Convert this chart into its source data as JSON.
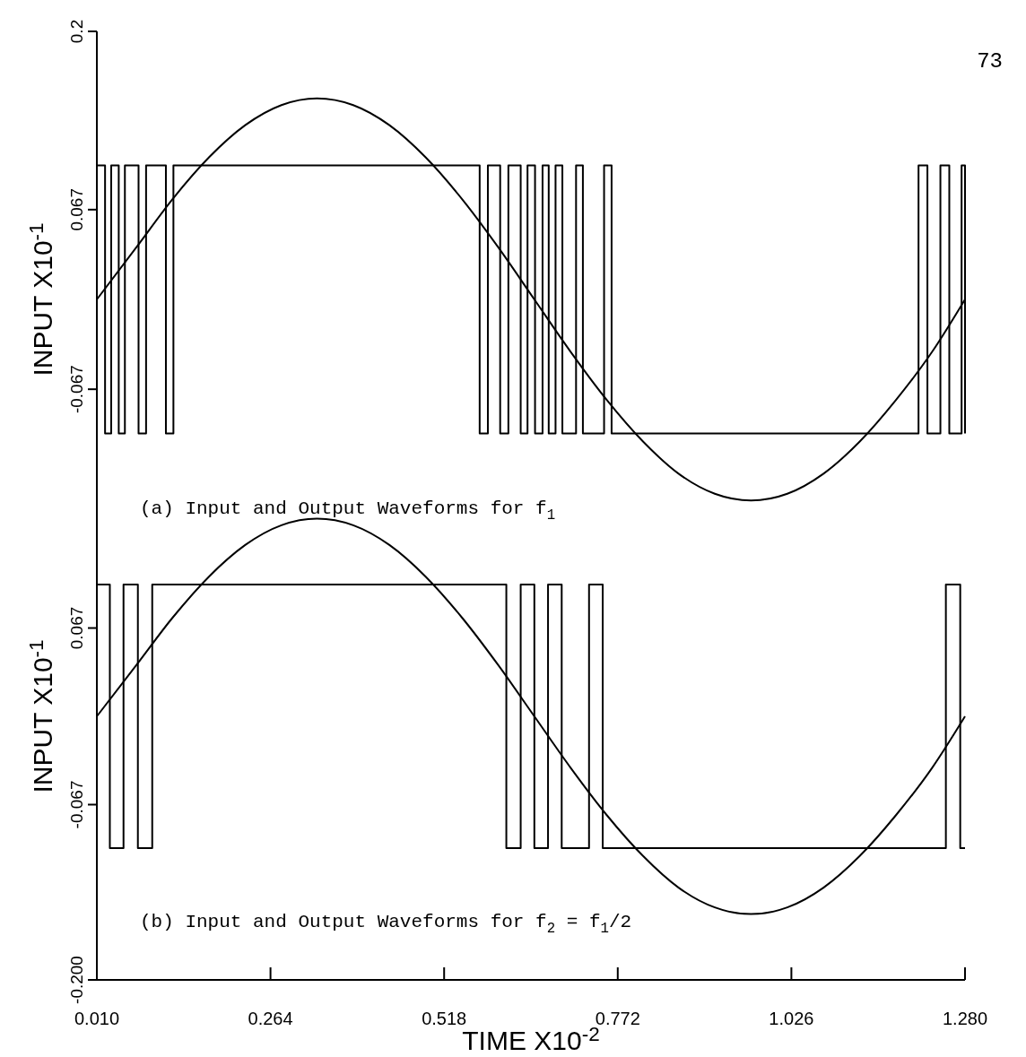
{
  "chart_data": [
    {
      "type": "line",
      "title": "(a)  Input and Output Waveforms for f$_{1}$",
      "ylabel": "INPUT  X10$^{-1}$",
      "annotations": [
        "73"
      ],
      "xlim": [
        0.01,
        1.28
      ],
      "ylim": [
        -0.2,
        0.2
      ],
      "yticks": [
        0.2,
        0.067,
        -0.067
      ],
      "tick_labels": "y",
      "series": [
        {
          "type": "line",
          "color": "#000000",
          "x": [
            0.01,
            0.068,
            0.121,
            0.174,
            0.227,
            0.28,
            0.332,
            0.385,
            0.438,
            0.491,
            0.544,
            0.597,
            0.65,
            0.703,
            0.756,
            0.809,
            0.861,
            0.914,
            0.967,
            1.02,
            1.073,
            1.126,
            1.179,
            1.232,
            1.28
          ],
          "values": [
            0,
            0.039,
            0.075,
            0.106,
            0.13,
            0.145,
            0.15,
            0.145,
            0.13,
            0.106,
            0.075,
            0.039,
            0,
            -0.039,
            -0.075,
            -0.106,
            -0.13,
            -0.145,
            -0.15,
            -0.145,
            -0.13,
            -0.106,
            -0.075,
            -0.039,
            0
          ]
        },
        {
          "type": "step",
          "color": "#000000",
          "x": [
            0.01,
            0.022,
            0.031,
            0.042,
            0.051,
            0.071,
            0.082,
            0.111,
            0.122,
            0.57,
            0.582,
            0.6,
            0.612,
            0.63,
            0.64,
            0.651,
            0.662,
            0.671,
            0.681,
            0.691,
            0.711,
            0.721,
            0.752,
            0.763,
            1.212,
            1.225,
            1.244,
            1.257,
            1.275,
            1.28
          ],
          "values": [
            0.1,
            -0.1,
            0.1,
            -0.1,
            0.1,
            -0.1,
            0.1,
            -0.1,
            0.1,
            -0.1,
            0.1,
            -0.1,
            0.1,
            -0.1,
            0.1,
            -0.1,
            0.1,
            -0.1,
            0.1,
            -0.1,
            0.1,
            -0.1,
            0.1,
            -0.1,
            0.1,
            -0.1,
            0.1,
            -0.1,
            0.1,
            -0.1
          ]
        }
      ]
    },
    {
      "type": "line",
      "title": "(b)  Input and Output Waveforms for f$_{2}$ = f$_{1}$/2",
      "xlabel": "TIME   X10$^{-2}$",
      "ylabel": "INPUT  X10$^{-1}$",
      "xlim": [
        0.01,
        1.28
      ],
      "xticks": [
        {
          "value": 0.01,
          "label": "0.010"
        },
        0.264,
        0.518,
        0.772,
        1.026,
        {
          "value": 1.28,
          "label": "1.280"
        }
      ],
      "ylim": [
        -0.2,
        0.2
      ],
      "yticks": [
        0.067,
        -0.067,
        {
          "value": -0.2,
          "label": "-0.200"
        }
      ],
      "series": [
        {
          "type": "line",
          "color": "#000000",
          "x": [
            0.01,
            0.068,
            0.121,
            0.174,
            0.227,
            0.28,
            0.332,
            0.385,
            0.438,
            0.491,
            0.544,
            0.597,
            0.65,
            0.703,
            0.756,
            0.809,
            0.861,
            0.914,
            0.967,
            1.02,
            1.073,
            1.126,
            1.179,
            1.232,
            1.28
          ],
          "values": [
            0,
            0.039,
            0.075,
            0.106,
            0.13,
            0.145,
            0.15,
            0.145,
            0.13,
            0.106,
            0.075,
            0.039,
            0,
            -0.039,
            -0.075,
            -0.106,
            -0.13,
            -0.145,
            -0.15,
            -0.145,
            -0.13,
            -0.106,
            -0.075,
            -0.039,
            0
          ]
        },
        {
          "type": "step",
          "color": "#000000",
          "x": [
            0.01,
            0.029,
            0.049,
            0.07,
            0.091,
            0.609,
            0.63,
            0.65,
            0.67,
            0.69,
            0.73,
            0.75,
            1.252,
            1.273,
            1.28
          ],
          "values": [
            0.1,
            -0.1,
            0.1,
            -0.1,
            0.1,
            -0.1,
            0.1,
            -0.1,
            0.1,
            -0.1,
            0.1,
            -0.1,
            0.1,
            -0.1,
            -0.1
          ]
        }
      ]
    }
  ]
}
